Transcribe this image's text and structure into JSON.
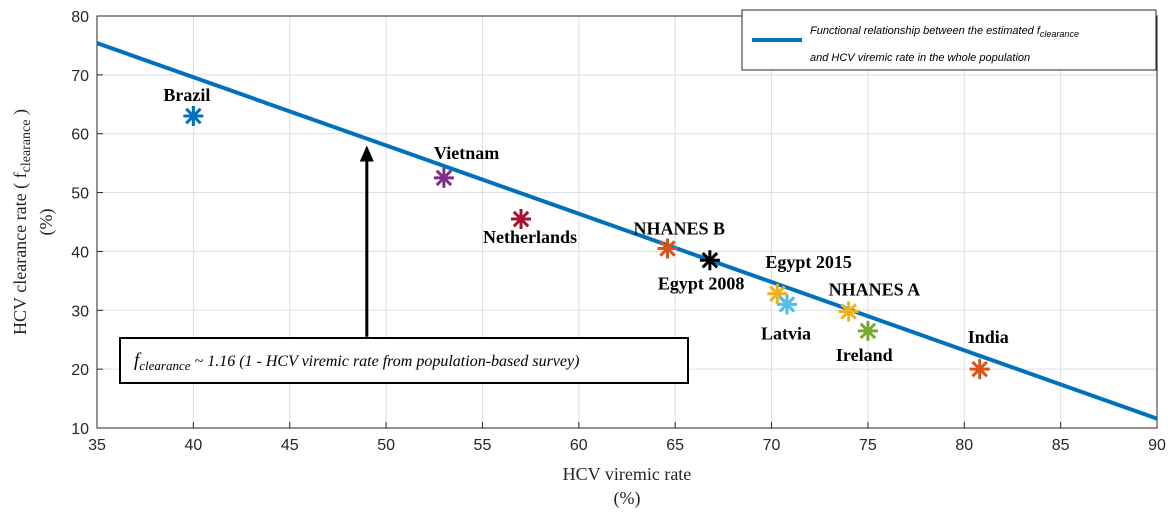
{
  "chart_data": {
    "type": "scatter",
    "title": "",
    "xlabel": "HCV viremic rate",
    "xlabel_unit": "(%)",
    "ylabel": "HCV clearance rate ( f",
    "ylabel_sub": "clearance",
    "ylabel_close": " )",
    "ylabel_unit": "(%)",
    "xlim": [
      35,
      90
    ],
    "ylim": [
      10,
      80
    ],
    "xticks": [
      35,
      40,
      45,
      50,
      55,
      60,
      65,
      70,
      75,
      80,
      85,
      90
    ],
    "yticks": [
      10,
      20,
      30,
      40,
      50,
      60,
      70,
      80
    ],
    "grid": true,
    "legend_position": "top-right",
    "fit_line": {
      "name_part1": "Functional relationship between the estimated f",
      "name_sub": "clearance",
      "name_part2": "and HCV viremic rate in the whole population",
      "color": "#0072BD",
      "x": [
        35,
        90
      ],
      "y": [
        75.4,
        11.6
      ]
    },
    "points": [
      {
        "label": "Brazil",
        "x": 40,
        "y": 63,
        "color": "#0072BD"
      },
      {
        "label": "Vietnam",
        "x": 53,
        "y": 52.5,
        "color": "#7E2F8E"
      },
      {
        "label": "Netherlands",
        "x": 57,
        "y": 45.5,
        "color": "#A2142F"
      },
      {
        "label": "NHANES B",
        "x": 64.6,
        "y": 40.5,
        "color": "#D95319"
      },
      {
        "label": "Egypt 2008",
        "x": 66.8,
        "y": 38.5,
        "color": "#000000"
      },
      {
        "label": "Egypt 2015",
        "x": 70.3,
        "y": 32.8,
        "color": "#EDB120"
      },
      {
        "label": "Latvia",
        "x": 70.8,
        "y": 31,
        "color": "#4DBEEE"
      },
      {
        "label": "NHANES A",
        "x": 74,
        "y": 29.8,
        "color": "#EDB120"
      },
      {
        "label": "Ireland",
        "x": 75,
        "y": 26.5,
        "color": "#77AC30"
      },
      {
        "label": "India",
        "x": 80.8,
        "y": 20,
        "color": "#D95319"
      }
    ],
    "annotation": {
      "text_f": "f",
      "text_sub": "clearance",
      "text_rest": " ~ 1.16 (1 - HCV viremic rate from population-based survey)",
      "arrow_x": 49,
      "arrow_from_y": 25.5,
      "arrow_to_y": 58
    }
  }
}
